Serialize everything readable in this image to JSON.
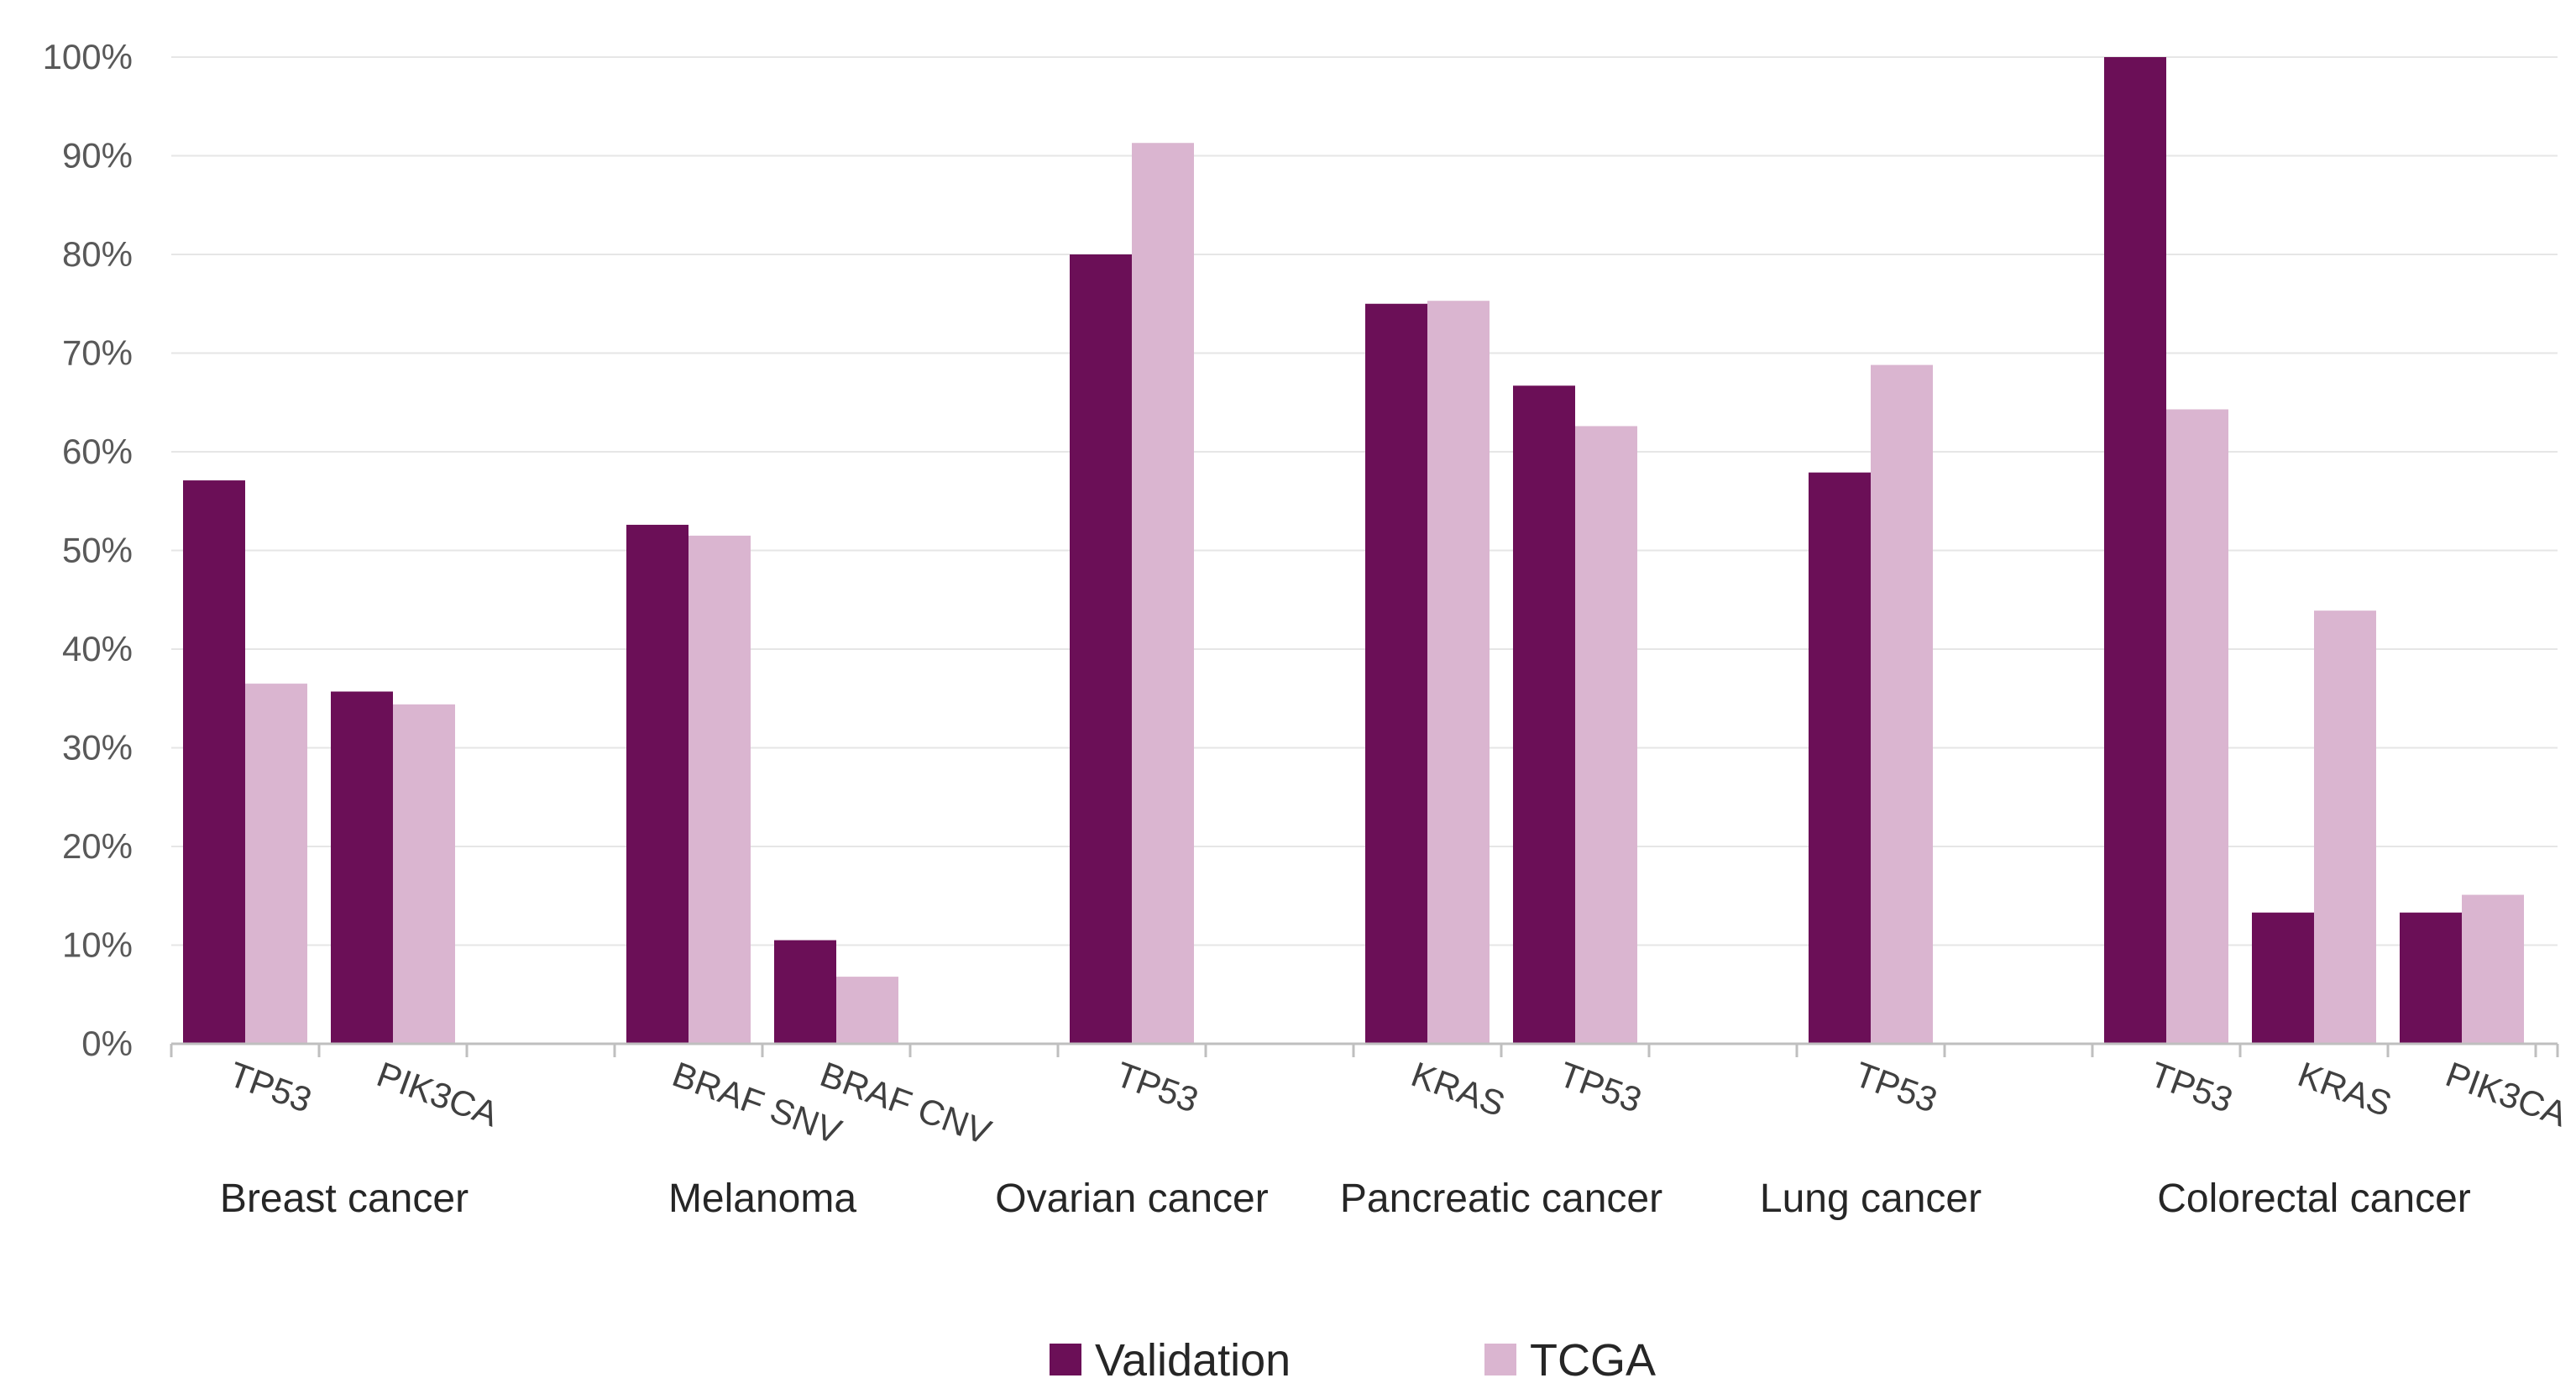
{
  "chart_data": {
    "type": "bar",
    "title": "",
    "xlabel": "",
    "ylabel": "",
    "ylim": [
      0,
      100
    ],
    "ytick_step": 10,
    "ytick_suffix": "%",
    "grid": true,
    "legend_position": "bottom",
    "colors": {
      "Validation": "#6b0f57",
      "TCGA": "#dab5d0"
    },
    "groups": [
      {
        "label": "Breast cancer",
        "genes": [
          "TP53",
          "PIK3CA"
        ]
      },
      {
        "label": "Melanoma",
        "genes": [
          "BRAF SNV",
          "BRAF CNV"
        ]
      },
      {
        "label": "Ovarian cancer",
        "genes": [
          "TP53"
        ]
      },
      {
        "label": "Pancreatic cancer",
        "genes": [
          "KRAS",
          "TP53"
        ]
      },
      {
        "label": "Lung cancer",
        "genes": [
          "TP53"
        ]
      },
      {
        "label": "Colorectal cancer",
        "genes": [
          "TP53",
          "KRAS",
          "PIK3CA"
        ]
      }
    ],
    "series": [
      {
        "name": "Validation",
        "values": [
          57.1,
          35.7,
          52.6,
          10.5,
          80.0,
          75.0,
          66.7,
          57.9,
          100.0,
          13.3,
          13.3
        ]
      },
      {
        "name": "TCGA",
        "values": [
          36.5,
          34.4,
          51.5,
          6.8,
          91.3,
          75.3,
          62.6,
          68.8,
          64.3,
          43.9,
          15.1
        ]
      }
    ]
  }
}
